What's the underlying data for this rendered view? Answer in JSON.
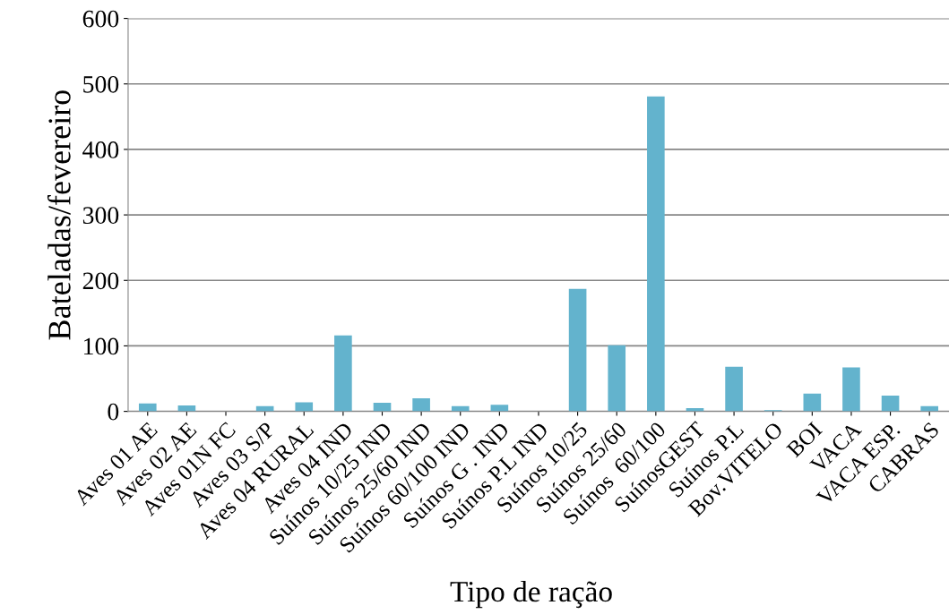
{
  "chart_data": {
    "type": "bar",
    "xlabel": "Tipo de ração",
    "ylabel": "Bateladas/fevereiro",
    "categories": [
      "Aves 01 AE",
      "Aves 02 AE",
      "Aves 01N FC",
      "Aves 03 S/P",
      "Aves 04 RURAL",
      "Aves 04 IND",
      "Suínos 10/25 IND",
      "Suínos 25/60 IND",
      "Suínos 60/100 IND",
      "Suínos G . IND",
      "Suínos P.L IND",
      "Suínos 10/25",
      "Suínos 25/60",
      "Suínos  60/100",
      "SuínosGEST",
      "Suínos P.L",
      "Bov.VITELO",
      "BOI",
      "VACA",
      "VACA ESP.",
      "CABRAS"
    ],
    "values": [
      12,
      9,
      0,
      8,
      14,
      116,
      13,
      20,
      8,
      10,
      0,
      187,
      101,
      481,
      5,
      68,
      2,
      27,
      67,
      24,
      8
    ],
    "color": "#63b3cd",
    "ylim": [
      0,
      600
    ],
    "yticks": [
      0,
      100,
      200,
      300,
      400,
      500,
      600
    ],
    "grid": "y"
  }
}
